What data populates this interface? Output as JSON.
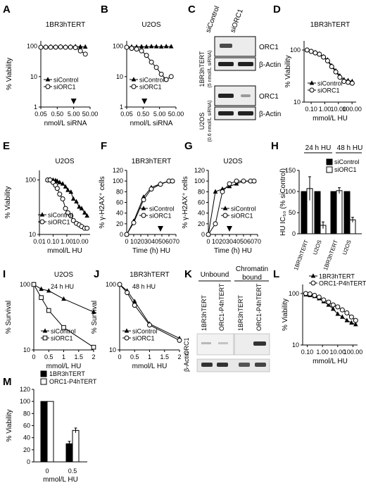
{
  "figure": {
    "panels": {
      "A": {
        "letter": "A",
        "title": "1BR3hTERT",
        "ylabel": "% Viability",
        "xlabel": "nmol/L siRNA",
        "yticks": [
          "100",
          "10",
          "1"
        ],
        "xticks": [
          "0.05",
          "0.50",
          "5.00",
          "50.00"
        ],
        "legend": [
          "siControl",
          "siORC1"
        ]
      },
      "B": {
        "letter": "B",
        "title": "U2OS",
        "xlabel": "nmol/L siRNA",
        "yticks": [
          "100",
          "10",
          "1"
        ],
        "xticks": [
          "0.05",
          "0.50",
          "5.00",
          "50.00"
        ],
        "legend": [
          "siControl",
          "siORC1"
        ]
      },
      "C": {
        "letter": "C",
        "col1": "siControl",
        "col2": "siORC1",
        "row1": "1BR3hTERT",
        "row1_sub": "(5 nmol/L siRNA)",
        "row2": "U2OS",
        "row2_sub": "(0.6 nmol/L siRNA)",
        "band1": "ORC1",
        "band2": "β-Actin"
      },
      "D": {
        "letter": "D",
        "title": "1BR3hTERT",
        "ylabel": "% Viability",
        "xlabel": "mmol/L HU",
        "yticks": [
          "100",
          "10"
        ],
        "xticks": [
          "0.10",
          "1.00",
          "10.00",
          "100.00"
        ],
        "legend": [
          "siControl",
          "siORC1"
        ]
      },
      "E": {
        "letter": "E",
        "title": "U2OS",
        "ylabel": "% Viability",
        "xlabel": "mmol/L HU",
        "yticks": [
          "100",
          "10"
        ],
        "xticks": [
          "0.01",
          "0.10",
          "1.00",
          "10.00"
        ],
        "legend": [
          "siControl",
          "siORC1"
        ]
      },
      "F": {
        "letter": "F",
        "title": "1BR3hTERT",
        "ylabel": "% γ-H2AX⁺ cells",
        "xlabel": "Time (h) HU",
        "yticks": [
          "0",
          "20",
          "40",
          "60",
          "80",
          "100",
          "120"
        ],
        "xticks": [
          "0",
          "10",
          "20",
          "30",
          "40",
          "50",
          "60",
          "70"
        ],
        "legend": [
          "siControl",
          "siORC1"
        ]
      },
      "G": {
        "letter": "G",
        "title": "U2OS",
        "ylabel": "% γ-H2AX⁺ cells",
        "xlabel": "Time (h) HU",
        "yticks": [
          "0",
          "20",
          "40",
          "60",
          "80",
          "100",
          "120"
        ],
        "xticks": [
          "0",
          "10",
          "20",
          "30",
          "40",
          "50",
          "60",
          "70"
        ],
        "legend": [
          "siControl",
          "siORC1"
        ]
      },
      "H": {
        "letter": "H",
        "group1": "24 h HU",
        "group2": "48 h HU",
        "ylabel": "HU IC₅₀ (% siControl)",
        "yticks": [
          "0",
          "50",
          "100",
          "150"
        ],
        "xticks": [
          "1BR3hTERT",
          "U2OS",
          "1BR3hTERT",
          "U2OS"
        ],
        "legend": [
          "siControl",
          "siORC1"
        ]
      },
      "I": {
        "letter": "I",
        "title": "U2OS",
        "subtitle": "24 h HU",
        "ylabel": "% Survival",
        "xlabel": "mmol/L HU",
        "yticks": [
          "100",
          "10"
        ],
        "xticks": [
          "0",
          "0.5",
          "1",
          "1.5",
          "2"
        ],
        "legend": [
          "siControl",
          "siORC1"
        ]
      },
      "J": {
        "letter": "J",
        "title": "1BR3hTERT",
        "subtitle": "48 h HU",
        "ylabel": "% Survival",
        "xlabel": "mmol/L HU",
        "yticks": [
          "100",
          "10"
        ],
        "xticks": [
          "0",
          "0.5",
          "1",
          "1.5",
          "2"
        ],
        "legend": [
          "siControl",
          "siORC1"
        ]
      },
      "K": {
        "letter": "K",
        "group1": "Unbound",
        "group2": "Chromatin bound",
        "lane1": "1BR3hTERT",
        "lane2": "ORC1-P4hTERT",
        "band1": "ORC1",
        "band2": "β-Actin"
      },
      "L": {
        "letter": "L",
        "ylabel": "% Viability",
        "xlabel": "mmol/L HU",
        "yticks": [
          "100",
          "10"
        ],
        "xticks": [
          "0.10",
          "1.00",
          "10.00",
          "100.00"
        ],
        "legend": [
          "1BR3hTERT",
          "ORC1-P4hTERT"
        ]
      },
      "M": {
        "letter": "M",
        "ylabel": "% Viability",
        "xlabel": "mmol/L HU",
        "yticks": [
          "0",
          "20",
          "40",
          "60",
          "80",
          "100",
          "120"
        ],
        "xticks": [
          "0",
          "0.5"
        ],
        "legend": [
          "1BR3hTERT",
          "ORC1-P4hTERT"
        ]
      }
    }
  },
  "chart_data": [
    {
      "panel": "A",
      "type": "line",
      "log_x": true,
      "log_y": true,
      "xlim": [
        0.05,
        50
      ],
      "ylim": [
        1,
        150
      ],
      "series": [
        {
          "name": "siControl",
          "marker": "triangle-filled",
          "x": [
            0.05,
            0.1,
            0.2,
            0.4,
            0.8,
            1.6,
            3.2,
            6.4,
            12.8,
            25.6
          ],
          "y": [
            95,
            95,
            97,
            96,
            97,
            96,
            97,
            98,
            96,
            95
          ]
        },
        {
          "name": "siORC1",
          "marker": "circle-open",
          "x": [
            0.05,
            0.1,
            0.2,
            0.4,
            0.8,
            1.6,
            3.2,
            6.4,
            12.8,
            25.6
          ],
          "y": [
            92,
            93,
            92,
            93,
            94,
            92,
            93,
            90,
            70,
            55
          ]
        }
      ],
      "annotations": [
        {
          "type": "arrow",
          "x": 5
        }
      ]
    },
    {
      "panel": "B",
      "type": "line",
      "log_x": true,
      "log_y": true,
      "xlim": [
        0.05,
        50
      ],
      "ylim": [
        1,
        150
      ],
      "series": [
        {
          "name": "siControl",
          "marker": "triangle-filled",
          "x": [
            0.05,
            0.1,
            0.2,
            0.4,
            0.8,
            1.6,
            3.2,
            6.4,
            12.8,
            25.6
          ],
          "y": [
            95,
            96,
            95,
            97,
            96,
            98,
            97,
            96,
            98,
            97
          ]
        },
        {
          "name": "siORC1",
          "marker": "circle-open",
          "x": [
            0.05,
            0.1,
            0.2,
            0.4,
            0.8,
            1.6,
            3.2,
            6.4,
            12.8,
            25.6
          ],
          "y": [
            92,
            85,
            80,
            70,
            50,
            30,
            20,
            12,
            8,
            10
          ]
        }
      ],
      "annotations": [
        {
          "type": "arrow",
          "x": 0.6
        }
      ]
    },
    {
      "panel": "D",
      "type": "line",
      "log_x": true,
      "log_y": true,
      "xlim": [
        0.03,
        200
      ],
      "ylim": [
        10,
        150
      ],
      "series": [
        {
          "name": "siControl",
          "marker": "triangle-filled",
          "x": [
            0.05,
            0.1,
            0.2,
            0.4,
            0.8,
            1.6,
            3.2,
            6.4,
            12.8,
            25.6,
            51.2,
            102.4
          ],
          "y": [
            100,
            95,
            90,
            85,
            75,
            65,
            50,
            40,
            32,
            27,
            26,
            25
          ]
        },
        {
          "name": "siORC1",
          "marker": "circle-open",
          "x": [
            0.05,
            0.1,
            0.2,
            0.4,
            0.8,
            1.6,
            3.2,
            6.4,
            12.8,
            25.6,
            51.2,
            102.4
          ],
          "y": [
            100,
            94,
            88,
            83,
            73,
            62,
            48,
            38,
            30,
            25,
            24,
            23
          ]
        }
      ]
    },
    {
      "panel": "E",
      "type": "line",
      "log_x": true,
      "log_y": true,
      "xlim": [
        0.01,
        50
      ],
      "ylim": [
        10,
        150
      ],
      "series": [
        {
          "name": "siControl",
          "marker": "triangle-filled",
          "x": [
            0.04,
            0.06,
            0.1,
            0.15,
            0.2,
            0.3,
            0.5,
            0.8,
            1.2,
            2,
            3,
            5,
            8,
            12,
            20,
            30
          ],
          "y": [
            100,
            102,
            100,
            98,
            95,
            90,
            85,
            75,
            65,
            60,
            45,
            40,
            32,
            30,
            25,
            22
          ]
        },
        {
          "name": "siORC1",
          "marker": "circle-open",
          "x": [
            0.04,
            0.06,
            0.1,
            0.15,
            0.2,
            0.3,
            0.5,
            0.8,
            1.2,
            2,
            3,
            5,
            8,
            12,
            20,
            30
          ],
          "y": [
            100,
            100,
            90,
            80,
            70,
            55,
            45,
            30,
            25,
            22,
            18,
            16,
            15,
            14,
            13,
            13
          ]
        }
      ]
    },
    {
      "panel": "F",
      "type": "line",
      "xlim": [
        0,
        70
      ],
      "ylim": [
        0,
        120
      ],
      "series": [
        {
          "name": "siControl",
          "marker": "triangle-filled",
          "x": [
            0,
            10,
            24,
            35,
            48,
            60,
            65
          ],
          "y": [
            0,
            25,
            70,
            88,
            95,
            100,
            100
          ]
        },
        {
          "name": "siORC1",
          "marker": "circle-open",
          "x": [
            0,
            10,
            24,
            35,
            48,
            60,
            65
          ],
          "y": [
            0,
            22,
            65,
            85,
            94,
            100,
            100
          ]
        }
      ],
      "annotations": [
        {
          "type": "arrow",
          "x": 48
        }
      ]
    },
    {
      "panel": "G",
      "type": "line",
      "xlim": [
        0,
        70
      ],
      "ylim": [
        0,
        120
      ],
      "series": [
        {
          "name": "siControl",
          "marker": "triangle-filled",
          "x": [
            0,
            10,
            20,
            30,
            40,
            50,
            60,
            65
          ],
          "y": [
            0,
            80,
            85,
            90,
            95,
            100,
            100,
            100
          ]
        },
        {
          "name": "siORC1",
          "marker": "circle-open",
          "x": [
            0,
            10,
            20,
            30,
            40,
            50,
            60,
            65
          ],
          "y": [
            0,
            20,
            80,
            95,
            100,
            100,
            100,
            100
          ]
        }
      ],
      "annotations": [
        {
          "type": "arrow",
          "x": 30
        }
      ]
    },
    {
      "panel": "H",
      "type": "bar",
      "categories": [
        "1BR3hTERT",
        "U2OS",
        "1BR3hTERT",
        "U2OS"
      ],
      "ylim": [
        0,
        150
      ],
      "series": [
        {
          "name": "siControl",
          "values": [
            100,
            100,
            100,
            100
          ],
          "errors": [
            0,
            0,
            0,
            0
          ]
        },
        {
          "name": "siORC1",
          "values": [
            107,
            20,
            102,
            33
          ],
          "errors": [
            28,
            8,
            7,
            6
          ]
        }
      ]
    },
    {
      "panel": "I",
      "type": "line",
      "log_y": true,
      "xlim": [
        0,
        2
      ],
      "ylim": [
        10,
        100
      ],
      "series": [
        {
          "name": "siControl",
          "marker": "triangle-filled",
          "x": [
            0,
            0.25,
            0.5,
            1,
            2
          ],
          "y": [
            100,
            85,
            80,
            60,
            38
          ]
        },
        {
          "name": "siORC1",
          "marker": "square-open",
          "x": [
            0,
            0.25,
            0.5,
            1,
            2
          ],
          "y": [
            100,
            63,
            40,
            22,
            11
          ]
        }
      ]
    },
    {
      "panel": "J",
      "type": "line",
      "log_y": true,
      "xlim": [
        0,
        2
      ],
      "ylim": [
        10,
        100
      ],
      "series": [
        {
          "name": "siControl",
          "marker": "triangle-filled",
          "x": [
            0,
            0.25,
            0.5,
            1,
            2
          ],
          "y": [
            100,
            80,
            55,
            25,
            15
          ]
        },
        {
          "name": "siORC1",
          "marker": "circle-open",
          "x": [
            0,
            0.25,
            0.5,
            1,
            2
          ],
          "y": [
            100,
            75,
            48,
            24,
            14
          ]
        }
      ]
    },
    {
      "panel": "L",
      "type": "line",
      "log_x": true,
      "log_y": true,
      "xlim": [
        0.05,
        200
      ],
      "ylim": [
        10,
        150
      ],
      "series": [
        {
          "name": "1BR3hTERT",
          "marker": "triangle-filled",
          "x": [
            0.08,
            0.15,
            0.3,
            0.6,
            1.2,
            2.5,
            5,
            10,
            20,
            40,
            80,
            150
          ],
          "y": [
            95,
            92,
            88,
            80,
            70,
            60,
            50,
            40,
            35,
            30,
            27,
            25
          ]
        },
        {
          "name": "ORC1-P4hTERT",
          "marker": "circle-open",
          "x": [
            0.08,
            0.15,
            0.3,
            0.6,
            1.2,
            2.5,
            5,
            10,
            20,
            40,
            80,
            150
          ],
          "y": [
            100,
            98,
            92,
            85,
            75,
            68,
            60,
            55,
            48,
            42,
            35,
            30
          ]
        }
      ]
    },
    {
      "panel": "M",
      "type": "bar",
      "categories": [
        "0",
        "0.5"
      ],
      "ylim": [
        0,
        120
      ],
      "series": [
        {
          "name": "1BR3hTERT",
          "values": [
            100,
            30
          ],
          "errors": [
            0,
            4
          ]
        },
        {
          "name": "ORC1-P4hTERT",
          "values": [
            100,
            52
          ],
          "errors": [
            0,
            4
          ]
        }
      ]
    }
  ]
}
